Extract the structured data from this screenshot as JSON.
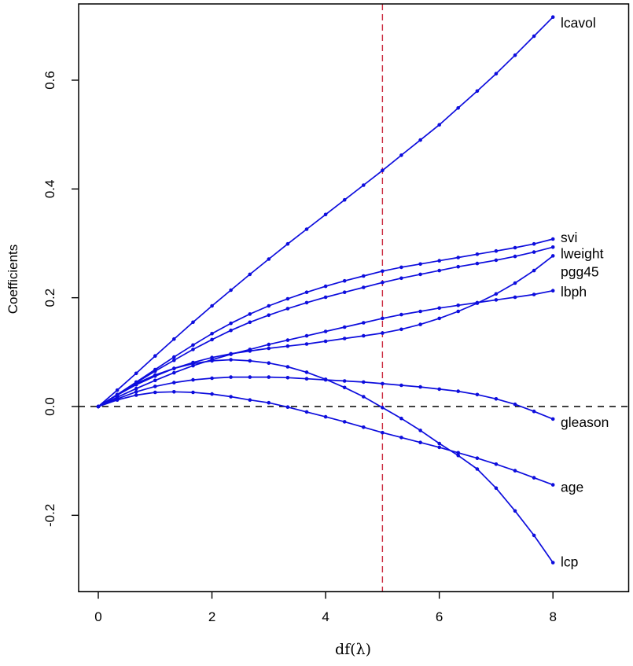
{
  "chart_data": {
    "type": "line",
    "title": "",
    "xlabel": "df(λ)",
    "ylabel": "Coefficients",
    "x_axis": {
      "ticks": [
        "0",
        "2",
        "4",
        "6",
        "8"
      ],
      "tick_values": [
        0,
        2,
        4,
        6,
        8
      ],
      "range": [
        -0.35,
        9.33
      ]
    },
    "y_axis": {
      "ticks": [
        "-0.2",
        "0.0",
        "0.2",
        "0.4",
        "0.6"
      ],
      "tick_values": [
        -0.2,
        0.0,
        0.2,
        0.4,
        0.6
      ],
      "range": [
        -0.34,
        0.74
      ]
    },
    "x": [
      0,
      0.333,
      0.667,
      1,
      1.333,
      1.667,
      2,
      2.333,
      2.667,
      3,
      3.333,
      3.667,
      4,
      4.333,
      4.667,
      5,
      5.333,
      5.667,
      6,
      6.333,
      6.667,
      7,
      7.333,
      7.667,
      8
    ],
    "series": [
      {
        "name": "lcavol",
        "values": [
          0,
          0.03,
          0.061,
          0.093,
          0.124,
          0.155,
          0.185,
          0.214,
          0.243,
          0.271,
          0.299,
          0.326,
          0.353,
          0.38,
          0.407,
          0.434,
          0.462,
          0.49,
          0.518,
          0.549,
          0.58,
          0.612,
          0.646,
          0.681,
          0.716
        ]
      },
      {
        "name": "svi",
        "values": [
          0,
          0.022,
          0.045,
          0.068,
          0.091,
          0.113,
          0.134,
          0.153,
          0.17,
          0.185,
          0.198,
          0.21,
          0.221,
          0.231,
          0.24,
          0.249,
          0.256,
          0.262,
          0.268,
          0.274,
          0.28,
          0.286,
          0.292,
          0.299,
          0.308
        ]
      },
      {
        "name": "lweight",
        "values": [
          0,
          0.022,
          0.044,
          0.065,
          0.085,
          0.105,
          0.123,
          0.14,
          0.155,
          0.168,
          0.18,
          0.191,
          0.201,
          0.21,
          0.219,
          0.228,
          0.236,
          0.243,
          0.25,
          0.257,
          0.263,
          0.269,
          0.276,
          0.284,
          0.293
        ]
      },
      {
        "name": "pgg45",
        "values": [
          0,
          0.021,
          0.04,
          0.056,
          0.07,
          0.081,
          0.09,
          0.097,
          0.102,
          0.107,
          0.111,
          0.115,
          0.12,
          0.125,
          0.13,
          0.135,
          0.142,
          0.151,
          0.162,
          0.175,
          0.19,
          0.207,
          0.227,
          0.25,
          0.277
        ]
      },
      {
        "name": "lbph",
        "values": [
          0,
          0.017,
          0.033,
          0.048,
          0.062,
          0.075,
          0.086,
          0.096,
          0.105,
          0.114,
          0.122,
          0.13,
          0.138,
          0.146,
          0.154,
          0.162,
          0.169,
          0.175,
          0.181,
          0.186,
          0.191,
          0.196,
          0.201,
          0.206,
          0.213
        ]
      },
      {
        "name": "gleason",
        "values": [
          0,
          0.014,
          0.027,
          0.037,
          0.044,
          0.049,
          0.052,
          0.054,
          0.054,
          0.054,
          0.053,
          0.051,
          0.049,
          0.047,
          0.045,
          0.042,
          0.039,
          0.036,
          0.032,
          0.028,
          0.022,
          0.014,
          0.004,
          -0.009,
          -0.023
        ]
      },
      {
        "name": "age",
        "values": [
          0,
          0.012,
          0.021,
          0.026,
          0.027,
          0.026,
          0.023,
          0.018,
          0.012,
          0.007,
          -0.001,
          -0.01,
          -0.019,
          -0.028,
          -0.038,
          -0.048,
          -0.057,
          -0.066,
          -0.075,
          -0.085,
          -0.095,
          -0.106,
          -0.118,
          -0.131,
          -0.144
        ]
      },
      {
        "name": "lcp",
        "values": [
          0,
          0.022,
          0.042,
          0.058,
          0.07,
          0.079,
          0.084,
          0.086,
          0.084,
          0.08,
          0.073,
          0.063,
          0.05,
          0.035,
          0.018,
          -0.002,
          -0.022,
          -0.044,
          -0.068,
          -0.09,
          -0.115,
          -0.15,
          -0.192,
          -0.237,
          -0.287
        ]
      }
    ],
    "reference_lines": [
      {
        "type": "horizontal",
        "value": 0,
        "style": "dashed",
        "color": "#000000"
      },
      {
        "type": "vertical",
        "value": 5,
        "style": "dashed",
        "color": "#cb2a3e"
      }
    ],
    "colors": {
      "line": "#0d0ddd",
      "vertical_ref": "#cb2a3e",
      "horizontal_ref": "#000000"
    },
    "marker": "filled-circle",
    "grid": false,
    "legend_position": "right-of-curve-endpoints"
  }
}
